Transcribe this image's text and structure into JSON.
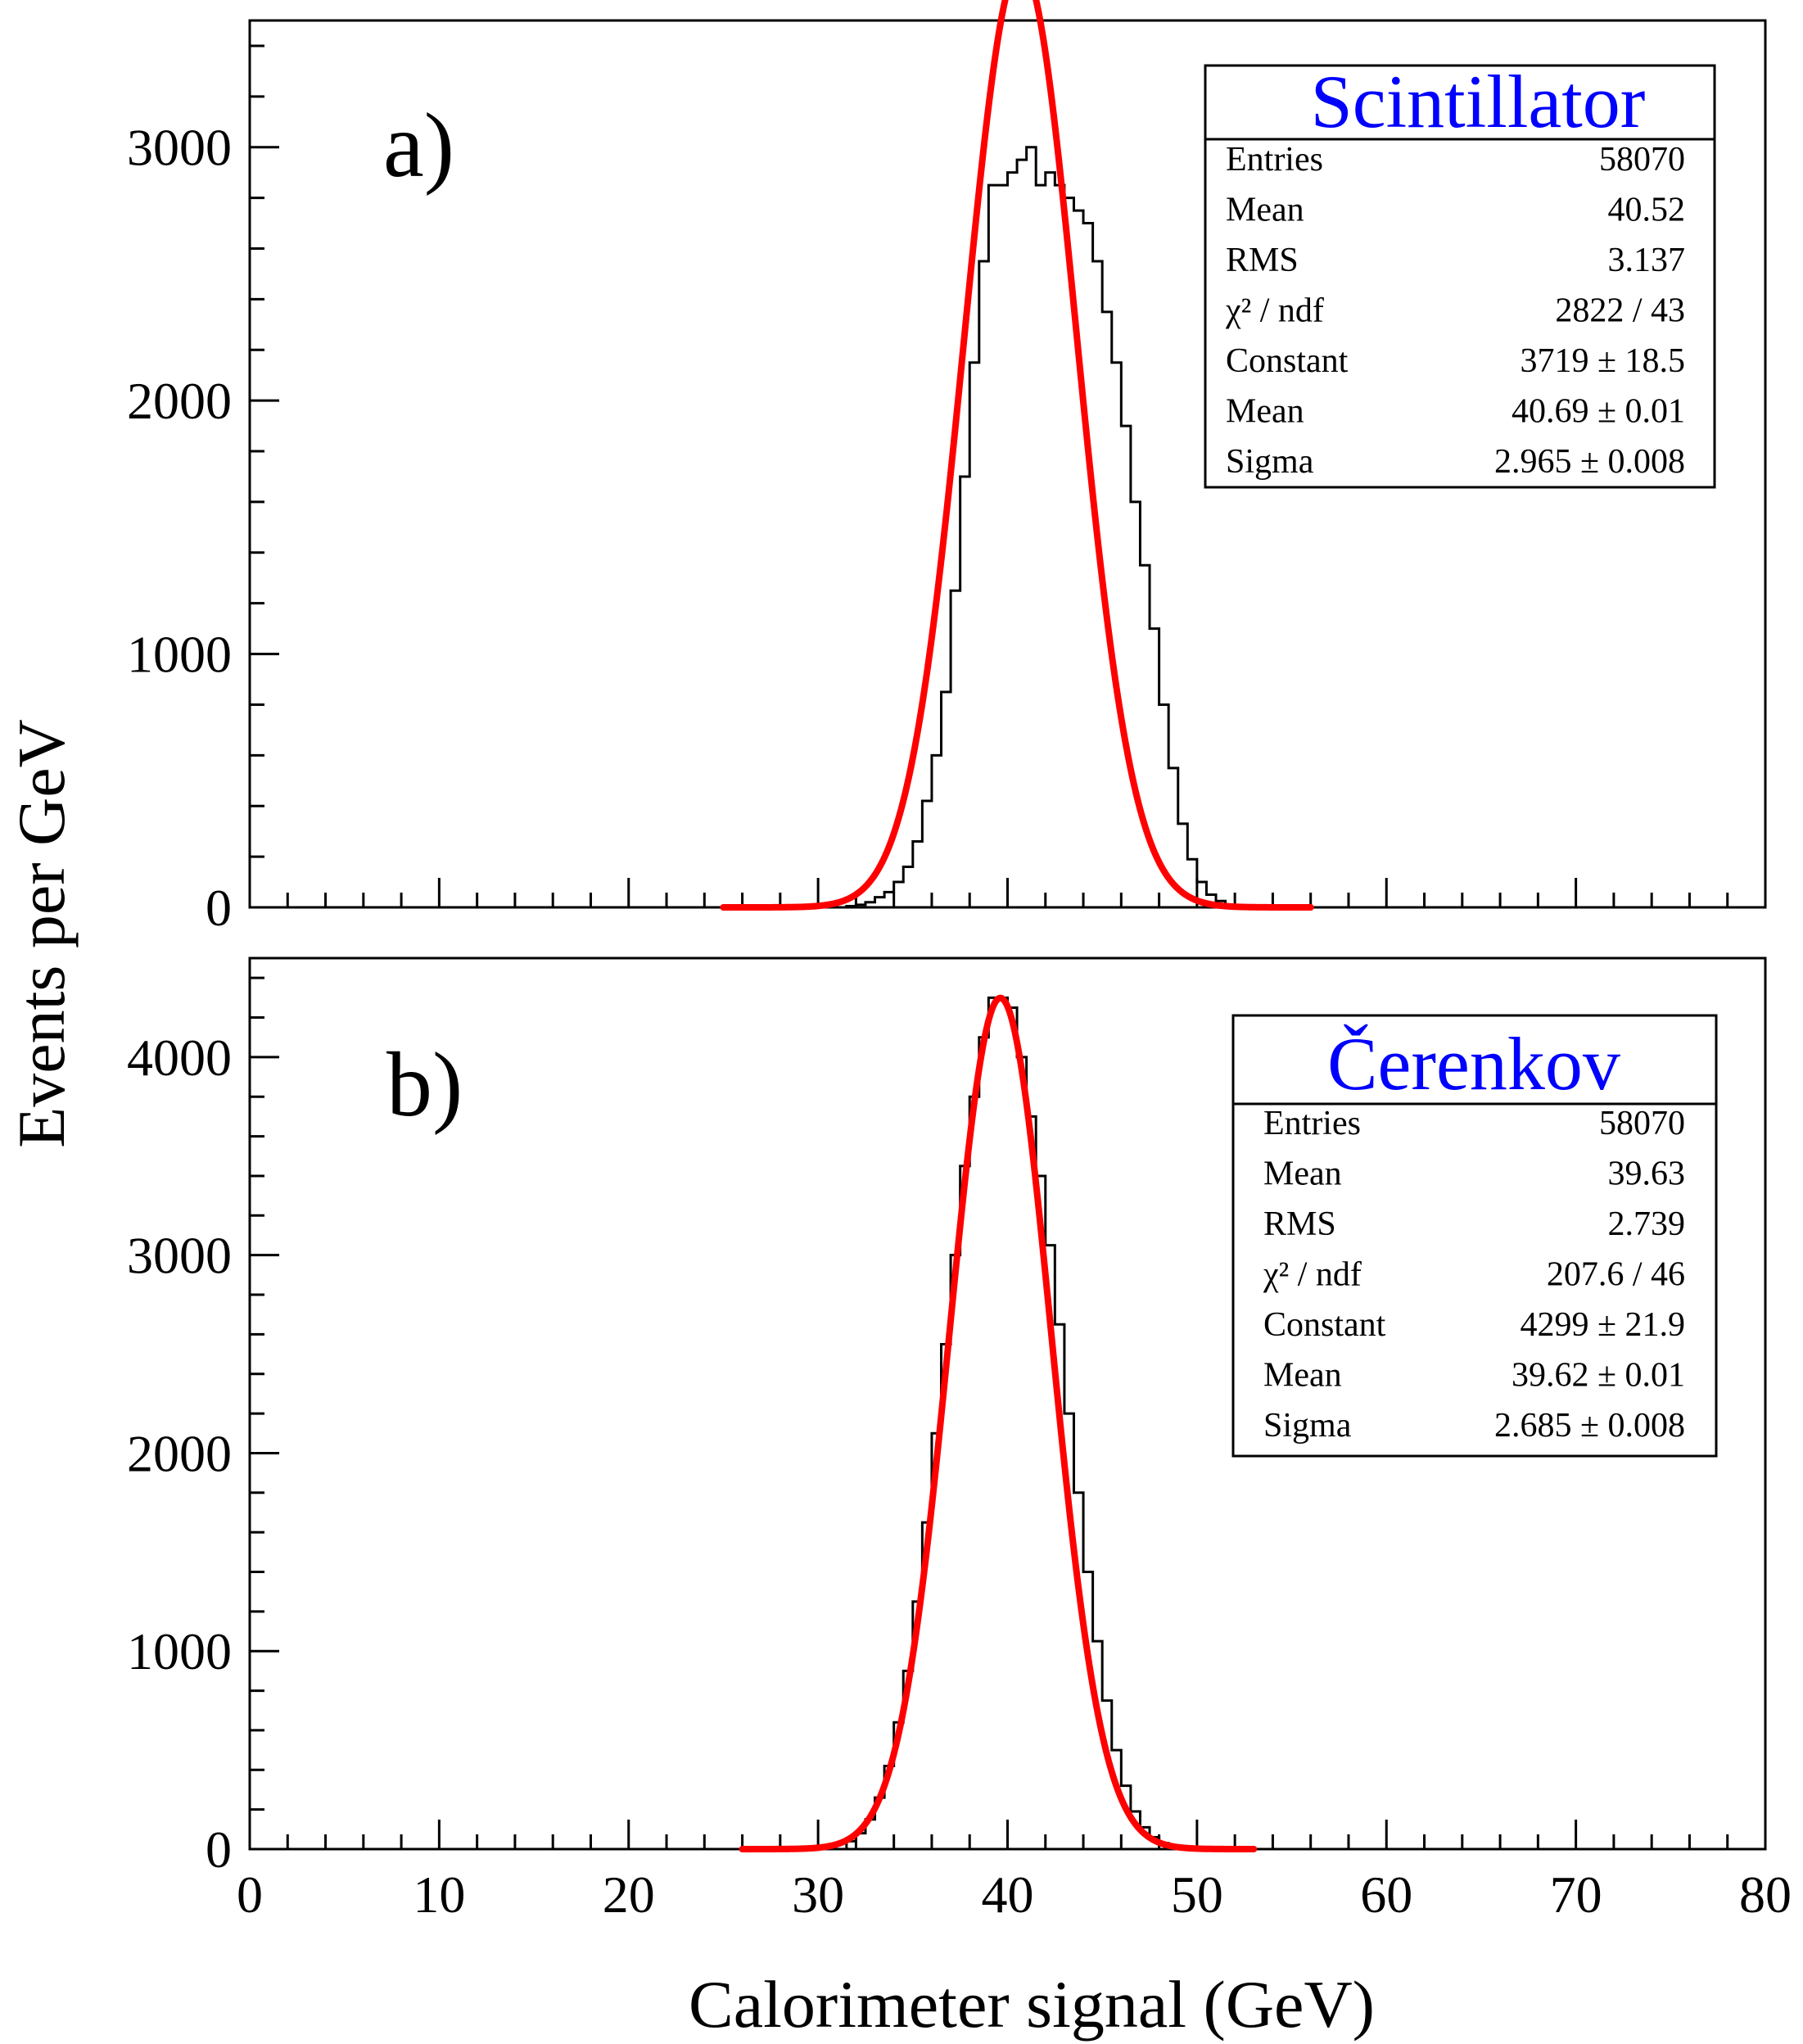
{
  "figure": {
    "xlabel": "Calorimeter signal (GeV)",
    "ylabel": "Events per GeV"
  },
  "chart_data": [
    {
      "type": "histogram",
      "panel": "a)",
      "xlim": [
        0,
        80
      ],
      "ylim": [
        0,
        3500
      ],
      "xticks": [
        0,
        10,
        20,
        30,
        40,
        50,
        60,
        70,
        80
      ],
      "yticks": [
        0,
        1000,
        2000,
        3000
      ],
      "xlabel": "Calorimeter signal (GeV)",
      "ylabel": "Events per GeV",
      "hist": {
        "bin_width": 0.5,
        "x_start": 31.5,
        "values": [
          5,
          10,
          20,
          40,
          60,
          100,
          160,
          260,
          420,
          600,
          850,
          1250,
          1700,
          2150,
          2550,
          2850,
          2850,
          2900,
          2950,
          3000,
          2850,
          2900,
          2850,
          2800,
          2750,
          2700,
          2550,
          2350,
          2150,
          1900,
          1600,
          1350,
          1100,
          800,
          550,
          330,
          190,
          100,
          50,
          25,
          10
        ]
      },
      "fit": {
        "function": "gaus",
        "constant": 3719,
        "mean": 40.69,
        "sigma": 2.965,
        "range": [
          25,
          56
        ]
      },
      "stats": {
        "title": "Scintillator",
        "rows": [
          {
            "name": "Entries",
            "value": "58070"
          },
          {
            "name": "Mean",
            "value": "40.52"
          },
          {
            "name": "RMS",
            "value": "3.137"
          },
          {
            "name": "χ² / ndf",
            "value": "2822 / 43"
          },
          {
            "name": "Constant",
            "value": "3719 ± 18.5"
          },
          {
            "name": "Mean",
            "value": "40.69 ± 0.01"
          },
          {
            "name": "Sigma",
            "value": "2.965 ± 0.008"
          }
        ]
      }
    },
    {
      "type": "histogram",
      "panel": "b)",
      "xlim": [
        0,
        80
      ],
      "ylim": [
        0,
        4500
      ],
      "xticks": [
        0,
        10,
        20,
        30,
        40,
        50,
        60,
        70,
        80
      ],
      "yticks": [
        0,
        1000,
        2000,
        3000,
        4000
      ],
      "xlabel": "Calorimeter signal (GeV)",
      "ylabel": "Events per GeV",
      "hist": {
        "bin_width": 0.5,
        "x_start": 31.5,
        "values": [
          40,
          80,
          150,
          260,
          420,
          640,
          900,
          1250,
          1650,
          2100,
          2550,
          3000,
          3450,
          3800,
          4100,
          4300,
          4300,
          4250,
          4000,
          3700,
          3400,
          3050,
          2650,
          2200,
          1800,
          1400,
          1050,
          750,
          500,
          320,
          190,
          110,
          60,
          30,
          15,
          5
        ]
      },
      "fit": {
        "function": "gaus",
        "constant": 4299,
        "mean": 39.62,
        "sigma": 2.685,
        "range": [
          26,
          53
        ]
      },
      "stats": {
        "title": "Čerenkov",
        "rows": [
          {
            "name": "Entries",
            "value": "58070"
          },
          {
            "name": "Mean",
            "value": "39.63"
          },
          {
            "name": "RMS",
            "value": "2.739"
          },
          {
            "name": "χ² / ndf",
            "value": "207.6 / 46"
          },
          {
            "name": "Constant",
            "value": "4299 ± 21.9"
          },
          {
            "name": "Mean",
            "value": "39.62 ± 0.01"
          },
          {
            "name": "Sigma",
            "value": "2.685 ± 0.008"
          }
        ]
      }
    }
  ]
}
